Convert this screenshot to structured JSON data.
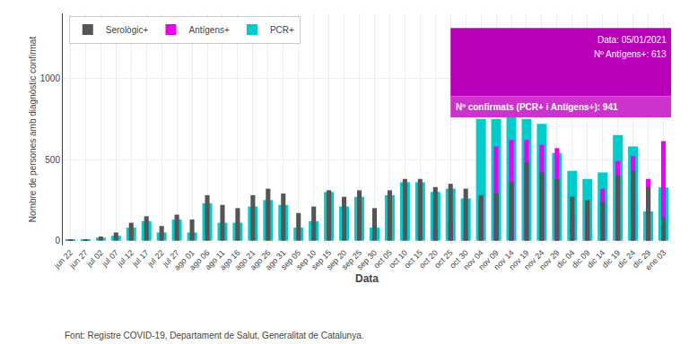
{
  "chart_data": {
    "type": "bar",
    "xlabel": "Data",
    "ylabel": "Nombre de persones amb diagnòstic confirmat",
    "source": "Font: Registre COVID-19, Departament de Salut, Generalitat de Catalunya.",
    "categories": [
      "jun 22",
      "jun 27",
      "jul 02",
      "jul 07",
      "jul 12",
      "jul 17",
      "jul 22",
      "jul 27",
      "ago 01",
      "ago 06",
      "ago 11",
      "ago 16",
      "ago 21",
      "ago 26",
      "ago 31",
      "sep 05",
      "sep 10",
      "sep 15",
      "sep 20",
      "sep 25",
      "sep 30",
      "oct 05",
      "oct 10",
      "oct 15",
      "oct 20",
      "oct 25",
      "oct 30",
      "nov 04",
      "nov 09",
      "nov 14",
      "nov 19",
      "nov 24",
      "nov 29",
      "dic 04",
      "dic 09",
      "dic 14",
      "dic 19",
      "dic 24",
      "dic 29",
      "ene 03"
    ],
    "series": [
      {
        "name": "PCR+",
        "color": "#00cccc",
        "values": [
          5,
          5,
          18,
          30,
          80,
          120,
          50,
          130,
          50,
          230,
          110,
          110,
          210,
          250,
          220,
          80,
          120,
          300,
          210,
          270,
          80,
          280,
          360,
          360,
          300,
          320,
          260,
          750,
          750,
          760,
          750,
          720,
          540,
          430,
          380,
          420,
          650,
          580,
          180,
          328
        ]
      },
      {
        "name": "Antígens+",
        "color": "#ee00ee",
        "values": [
          0,
          0,
          0,
          0,
          0,
          0,
          0,
          0,
          0,
          0,
          0,
          0,
          0,
          0,
          0,
          0,
          0,
          0,
          0,
          0,
          0,
          0,
          0,
          0,
          70,
          120,
          50,
          260,
          580,
          620,
          620,
          590,
          570,
          150,
          180,
          320,
          490,
          520,
          380,
          613
        ]
      },
      {
        "name": "Serològic+",
        "color": "#555555",
        "values": [
          5,
          8,
          25,
          50,
          110,
          150,
          90,
          160,
          130,
          280,
          220,
          200,
          280,
          320,
          290,
          170,
          210,
          310,
          270,
          310,
          200,
          310,
          380,
          380,
          330,
          350,
          320,
          280,
          290,
          360,
          480,
          420,
          380,
          270,
          250,
          240,
          400,
          430,
          330,
          140
        ]
      }
    ],
    "ylim": [
      -30,
      1400
    ],
    "yticks": [
      0,
      500,
      1000
    ],
    "grid": true,
    "legend": "upper left",
    "annotations": [
      {
        "text": "Data: 05/01/2021",
        "color": "#bb00bb"
      },
      {
        "text": "Nº Antígens+: 613",
        "color": "#bb00bb"
      },
      {
        "text": "Nº confirmats (PCR+ i Antígens+): 941",
        "color": "#cc33cc"
      }
    ]
  }
}
